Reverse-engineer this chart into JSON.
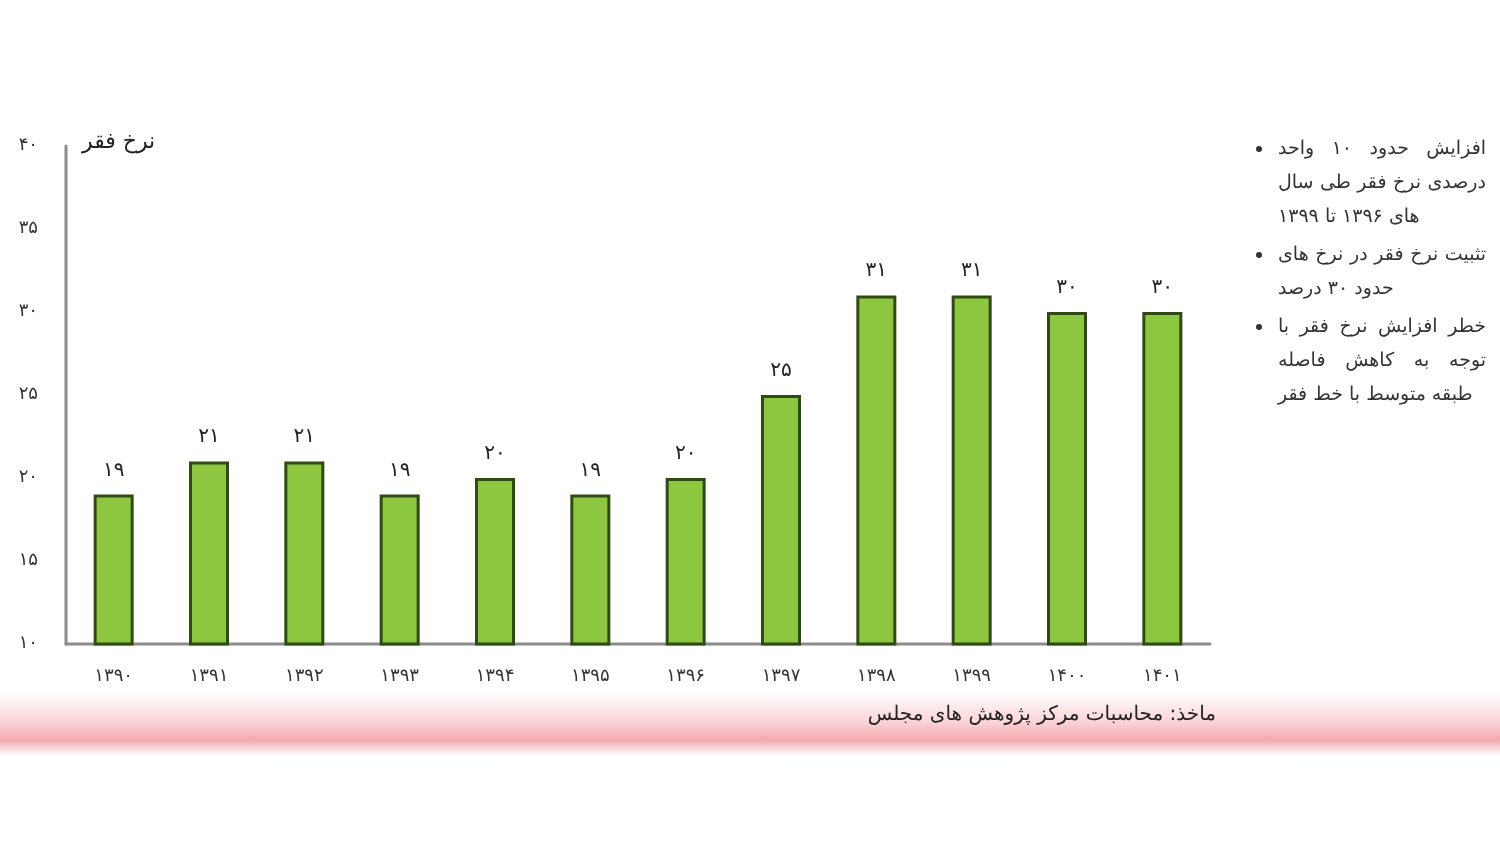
{
  "chart_data": {
    "type": "bar",
    "ylabel": "نرخ فقر",
    "categories": [
      "۱۳۹۰",
      "۱۳۹۱",
      "۱۳۹۲",
      "۱۳۹۳",
      "۱۳۹۴",
      "۱۳۹۵",
      "۱۳۹۶",
      "۱۳۹۷",
      "۱۳۹۸",
      "۱۳۹۹",
      "۱۴۰۰",
      "۱۴۰۱"
    ],
    "values": [
      19,
      21,
      21,
      19,
      20,
      19,
      20,
      25,
      31,
      31,
      30,
      30
    ],
    "value_labels": [
      "۱۹",
      "۲۱",
      "۲۱",
      "۱۹",
      "۲۰",
      "۱۹",
      "۲۰",
      "۲۵",
      "۳۱",
      "۳۱",
      "۳۰",
      "۳۰"
    ],
    "color": "#8dc63f",
    "ylim": [
      10,
      40
    ],
    "yticks": [
      {
        "value": 10,
        "label": "۱۰"
      },
      {
        "value": 15,
        "label": "۱۵"
      },
      {
        "value": 20,
        "label": "۲۰"
      },
      {
        "value": 25,
        "label": "۲۵"
      },
      {
        "value": 30,
        "label": "۳۰"
      },
      {
        "value": 35,
        "label": "۳۵"
      },
      {
        "value": 40,
        "label": "۴۰"
      }
    ],
    "grid": false,
    "annotations": [
      "افزایش حدود ۱۰ واحد درصدی نرخ فقر طی سال های ۱۳۹۶ تا ۱۳۹۹",
      "تثبیت نرخ فقر در نرخ های حدود ۳۰ درصد",
      "خطر افزایش نرخ فقر با توجه به کاهش فاصله طبقه متوسط با خط فقر",
      "ماخذ: محاسبات مرکز پژوهش های مجلس"
    ]
  }
}
